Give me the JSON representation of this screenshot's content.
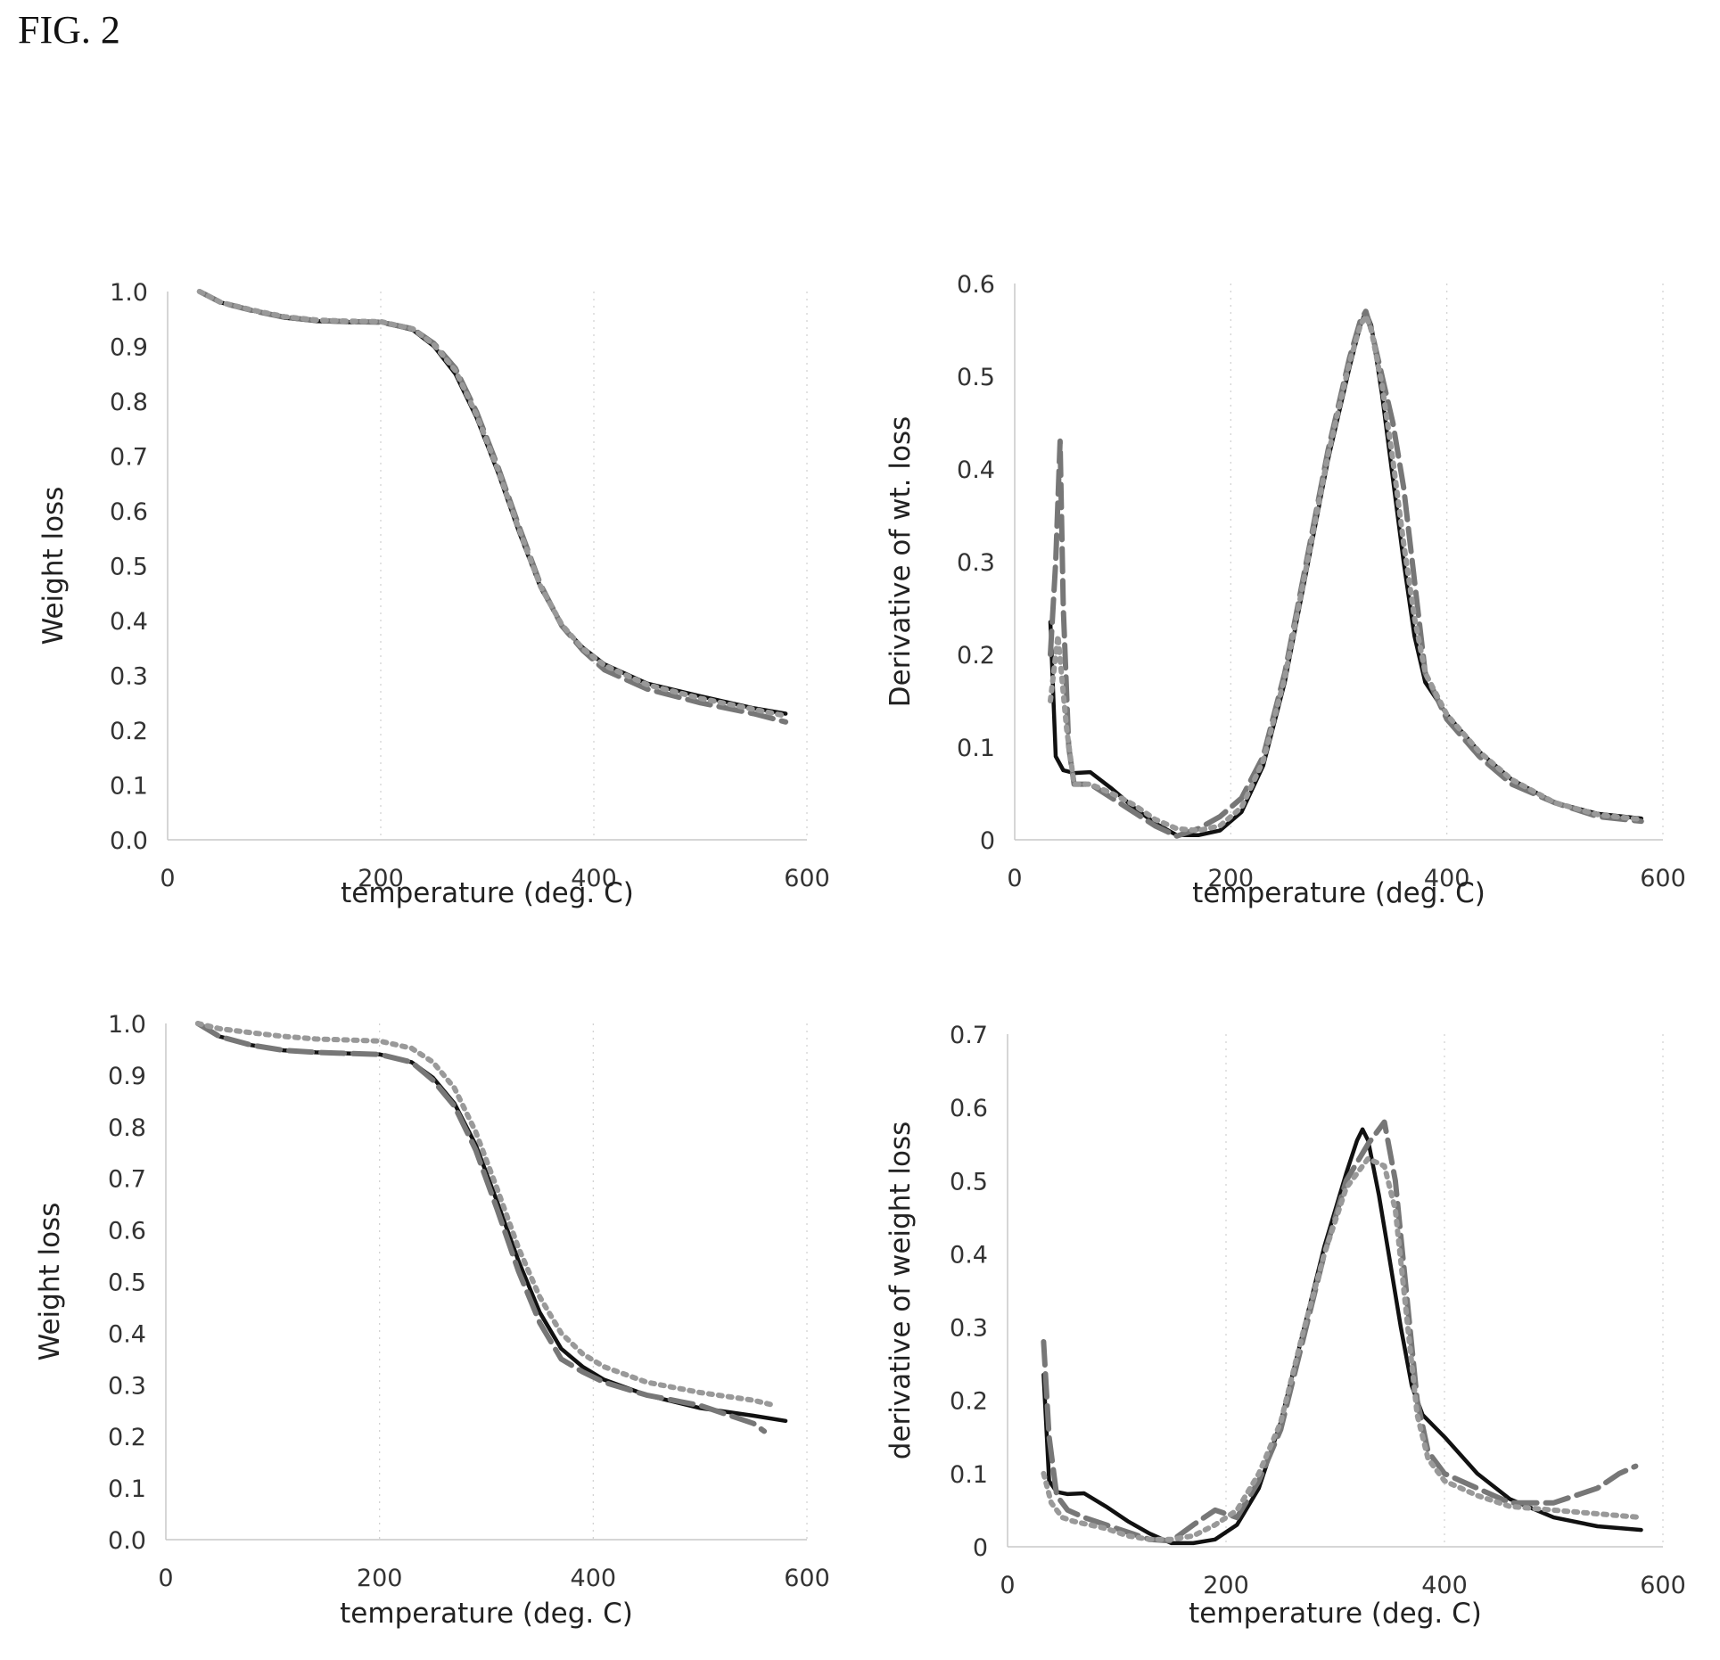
{
  "figure": {
    "label": "FIG. 2"
  },
  "chart_data": [
    {
      "type": "line",
      "xlabel": "temperature (deg. C)",
      "ylabel": "Weight loss",
      "xlim": [
        0,
        600
      ],
      "ylim": [
        0,
        1.0
      ],
      "xticks": [
        0,
        200,
        400,
        600
      ],
      "yticks": [
        0.0,
        0.1,
        0.2,
        0.3,
        0.4,
        0.5,
        0.6,
        0.7,
        0.8,
        0.9,
        1.0
      ],
      "ytick_format": 1,
      "grid": false,
      "series": [
        {
          "style": "solid",
          "color": "#111111",
          "x": [
            30,
            50,
            80,
            110,
            140,
            170,
            200,
            230,
            250,
            270,
            290,
            310,
            330,
            350,
            370,
            390,
            410,
            450,
            500,
            550,
            580
          ],
          "y": [
            1.0,
            0.98,
            0.965,
            0.952,
            0.946,
            0.944,
            0.944,
            0.93,
            0.9,
            0.85,
            0.77,
            0.67,
            0.56,
            0.46,
            0.39,
            0.35,
            0.32,
            0.285,
            0.262,
            0.24,
            0.23
          ]
        },
        {
          "style": "dashed",
          "color": "#777777",
          "x": [
            30,
            50,
            80,
            110,
            140,
            170,
            200,
            230,
            250,
            270,
            290,
            310,
            330,
            350,
            370,
            390,
            410,
            450,
            500,
            550,
            580
          ],
          "y": [
            1.0,
            0.98,
            0.965,
            0.953,
            0.947,
            0.945,
            0.944,
            0.932,
            0.905,
            0.86,
            0.78,
            0.68,
            0.57,
            0.465,
            0.39,
            0.345,
            0.31,
            0.275,
            0.25,
            0.23,
            0.215
          ]
        },
        {
          "style": "dotted",
          "color": "#999999",
          "x": [
            30,
            50,
            80,
            110,
            140,
            170,
            200,
            230,
            250,
            270,
            290,
            310,
            330,
            350,
            370,
            390,
            410,
            450,
            500,
            550,
            580
          ],
          "y": [
            1.0,
            0.98,
            0.966,
            0.954,
            0.948,
            0.946,
            0.945,
            0.932,
            0.903,
            0.856,
            0.775,
            0.675,
            0.565,
            0.462,
            0.392,
            0.348,
            0.318,
            0.283,
            0.258,
            0.238,
            0.226
          ]
        }
      ]
    },
    {
      "type": "line",
      "xlabel": "temperature (deg. C)",
      "ylabel": "Derivative of wt. loss",
      "xlim": [
        0,
        600
      ],
      "ylim": [
        0,
        0.6
      ],
      "xticks": [
        0,
        200,
        400,
        600
      ],
      "yticks": [
        0,
        0.1,
        0.2,
        0.3,
        0.4,
        0.5,
        0.6
      ],
      "ytick_format": 0,
      "grid": false,
      "series": [
        {
          "style": "solid",
          "color": "#111111",
          "x": [
            33,
            38,
            45,
            55,
            70,
            90,
            110,
            130,
            150,
            170,
            190,
            210,
            230,
            250,
            270,
            290,
            310,
            320,
            325,
            330,
            340,
            350,
            360,
            370,
            380,
            400,
            430,
            460,
            500,
            540,
            580
          ],
          "y": [
            0.235,
            0.09,
            0.075,
            0.072,
            0.073,
            0.055,
            0.035,
            0.018,
            0.005,
            0.005,
            0.01,
            0.03,
            0.08,
            0.17,
            0.29,
            0.41,
            0.51,
            0.555,
            0.57,
            0.555,
            0.48,
            0.39,
            0.3,
            0.22,
            0.17,
            0.135,
            0.095,
            0.065,
            0.04,
            0.028,
            0.023
          ]
        },
        {
          "style": "dashed",
          "color": "#777777",
          "x": [
            33,
            38,
            42,
            45,
            50,
            55,
            70,
            90,
            110,
            130,
            150,
            170,
            190,
            210,
            230,
            250,
            270,
            290,
            310,
            320,
            325,
            330,
            340,
            350,
            360,
            370,
            380,
            400,
            430,
            460,
            500,
            540,
            580
          ],
          "y": [
            0.2,
            0.3,
            0.43,
            0.25,
            0.1,
            0.06,
            0.06,
            0.045,
            0.03,
            0.015,
            0.004,
            0.012,
            0.025,
            0.045,
            0.09,
            0.18,
            0.3,
            0.42,
            0.52,
            0.56,
            0.57,
            0.55,
            0.5,
            0.45,
            0.38,
            0.28,
            0.18,
            0.13,
            0.09,
            0.06,
            0.04,
            0.025,
            0.02
          ]
        },
        {
          "style": "dotted",
          "color": "#999999",
          "x": [
            33,
            40,
            48,
            55,
            70,
            90,
            110,
            130,
            150,
            170,
            190,
            210,
            230,
            250,
            270,
            290,
            310,
            320,
            325,
            330,
            340,
            350,
            360,
            370,
            380,
            400,
            430,
            460,
            500,
            540,
            580
          ],
          "y": [
            0.15,
            0.22,
            0.12,
            0.06,
            0.06,
            0.05,
            0.038,
            0.022,
            0.012,
            0.01,
            0.015,
            0.035,
            0.085,
            0.175,
            0.295,
            0.415,
            0.515,
            0.555,
            0.565,
            0.55,
            0.49,
            0.41,
            0.32,
            0.24,
            0.18,
            0.135,
            0.095,
            0.065,
            0.04,
            0.027,
            0.022
          ]
        }
      ]
    },
    {
      "type": "line",
      "xlabel": "temperature (deg. C)",
      "ylabel": "Weight loss",
      "xlim": [
        0,
        600
      ],
      "ylim": [
        0,
        1.0
      ],
      "xticks": [
        0,
        200,
        400,
        600
      ],
      "yticks": [
        0.0,
        0.1,
        0.2,
        0.3,
        0.4,
        0.5,
        0.6,
        0.7,
        0.8,
        0.9,
        1.0
      ],
      "ytick_format": 1,
      "grid": false,
      "series": [
        {
          "style": "solid",
          "color": "#111111",
          "x": [
            30,
            50,
            80,
            110,
            140,
            170,
            200,
            230,
            250,
            270,
            290,
            310,
            330,
            350,
            370,
            390,
            410,
            450,
            500,
            550,
            580
          ],
          "y": [
            1.0,
            0.975,
            0.958,
            0.948,
            0.944,
            0.942,
            0.94,
            0.925,
            0.895,
            0.845,
            0.765,
            0.655,
            0.54,
            0.44,
            0.37,
            0.335,
            0.31,
            0.28,
            0.255,
            0.24,
            0.23
          ]
        },
        {
          "style": "dashed",
          "color": "#777777",
          "x": [
            30,
            50,
            80,
            110,
            140,
            170,
            200,
            230,
            250,
            270,
            290,
            310,
            330,
            350,
            370,
            390,
            410,
            450,
            500,
            550,
            560
          ],
          "y": [
            1.0,
            0.975,
            0.958,
            0.948,
            0.944,
            0.942,
            0.94,
            0.925,
            0.89,
            0.84,
            0.755,
            0.64,
            0.52,
            0.42,
            0.35,
            0.325,
            0.305,
            0.28,
            0.26,
            0.225,
            0.21
          ]
        },
        {
          "style": "dotted",
          "color": "#999999",
          "x": [
            30,
            50,
            80,
            110,
            140,
            170,
            200,
            230,
            250,
            270,
            290,
            310,
            330,
            350,
            370,
            390,
            410,
            450,
            500,
            550,
            570
          ],
          "y": [
            1.0,
            0.99,
            0.982,
            0.975,
            0.97,
            0.968,
            0.966,
            0.952,
            0.925,
            0.875,
            0.79,
            0.68,
            0.565,
            0.47,
            0.4,
            0.36,
            0.335,
            0.305,
            0.285,
            0.27,
            0.26
          ]
        }
      ]
    },
    {
      "type": "line",
      "xlabel": "temperature (deg. C)",
      "ylabel": "derivative of weight loss",
      "xlim": [
        0,
        600
      ],
      "ylim": [
        0,
        0.7
      ],
      "xticks": [
        0,
        200,
        400,
        600
      ],
      "yticks": [
        0,
        0.1,
        0.2,
        0.3,
        0.4,
        0.5,
        0.6,
        0.7
      ],
      "ytick_format": 0,
      "grid": false,
      "series": [
        {
          "style": "solid",
          "color": "#111111",
          "x": [
            33,
            38,
            45,
            55,
            70,
            90,
            110,
            130,
            150,
            170,
            190,
            210,
            230,
            250,
            270,
            290,
            310,
            320,
            325,
            330,
            340,
            350,
            360,
            370,
            380,
            400,
            430,
            460,
            500,
            540,
            580
          ],
          "y": [
            0.235,
            0.09,
            0.075,
            0.072,
            0.073,
            0.055,
            0.035,
            0.018,
            0.005,
            0.005,
            0.01,
            0.03,
            0.08,
            0.17,
            0.29,
            0.41,
            0.51,
            0.555,
            0.57,
            0.555,
            0.48,
            0.39,
            0.3,
            0.22,
            0.18,
            0.15,
            0.1,
            0.065,
            0.04,
            0.028,
            0.023
          ]
        },
        {
          "style": "dashed",
          "color": "#777777",
          "x": [
            33,
            38,
            45,
            55,
            70,
            90,
            110,
            130,
            150,
            170,
            190,
            210,
            230,
            250,
            270,
            290,
            310,
            330,
            345,
            355,
            365,
            375,
            385,
            400,
            430,
            460,
            500,
            540,
            560,
            575
          ],
          "y": [
            0.28,
            0.15,
            0.07,
            0.05,
            0.04,
            0.03,
            0.02,
            0.01,
            0.008,
            0.03,
            0.05,
            0.04,
            0.09,
            0.16,
            0.28,
            0.4,
            0.5,
            0.55,
            0.58,
            0.5,
            0.35,
            0.2,
            0.13,
            0.1,
            0.08,
            0.06,
            0.06,
            0.08,
            0.1,
            0.11
          ]
        },
        {
          "style": "dotted",
          "color": "#999999",
          "x": [
            33,
            40,
            50,
            60,
            75,
            90,
            110,
            130,
            150,
            170,
            190,
            210,
            230,
            250,
            270,
            290,
            310,
            330,
            345,
            355,
            365,
            375,
            385,
            400,
            430,
            460,
            500,
            540,
            580
          ],
          "y": [
            0.1,
            0.06,
            0.04,
            0.035,
            0.03,
            0.025,
            0.015,
            0.01,
            0.01,
            0.015,
            0.03,
            0.05,
            0.1,
            0.17,
            0.29,
            0.4,
            0.49,
            0.53,
            0.52,
            0.46,
            0.32,
            0.18,
            0.12,
            0.09,
            0.07,
            0.055,
            0.05,
            0.045,
            0.04
          ]
        }
      ]
    }
  ]
}
